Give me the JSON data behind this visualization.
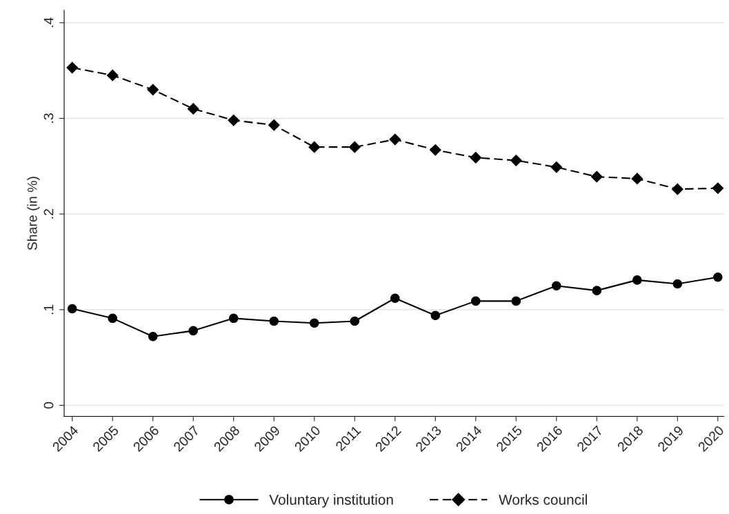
{
  "chart_data": {
    "type": "line",
    "ylabel": "Share (in %)",
    "categories": [
      "2004",
      "2005",
      "2006",
      "2007",
      "2008",
      "2009",
      "2010",
      "2011",
      "2012",
      "2013",
      "2014",
      "2015",
      "2016",
      "2017",
      "2018",
      "2019",
      "2020"
    ],
    "series": [
      {
        "name": "Voluntary institution",
        "color": "#000000",
        "marker": "circle",
        "line_style": "solid",
        "values": [
          0.101,
          0.091,
          0.072,
          0.078,
          0.091,
          0.088,
          0.086,
          0.088,
          0.112,
          0.094,
          0.109,
          0.109,
          0.125,
          0.12,
          0.131,
          0.127,
          0.134
        ]
      },
      {
        "name": "Works council",
        "color": "#000000",
        "marker": "diamond",
        "line_style": "dashed",
        "values": [
          0.353,
          0.345,
          0.33,
          0.31,
          0.298,
          0.293,
          0.27,
          0.27,
          0.278,
          0.267,
          0.259,
          0.256,
          0.249,
          0.239,
          0.237,
          0.226,
          0.227
        ]
      }
    ],
    "ylim": [
      -0.0115,
      0.413
    ],
    "yticks": [
      {
        "value": 0,
        "label": "0"
      },
      {
        "value": 0.1,
        "label": ".1"
      },
      {
        "value": 0.2,
        "label": ".2"
      },
      {
        "value": 0.3,
        "label": ".3"
      },
      {
        "value": 0.4,
        "label": ".4"
      }
    ],
    "grid": "y",
    "legend": "bottom"
  }
}
